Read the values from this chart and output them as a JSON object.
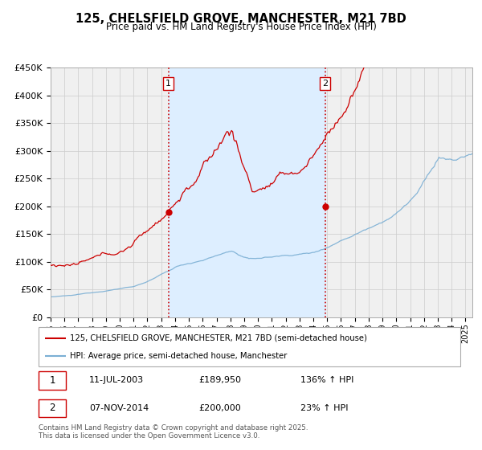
{
  "title": "125, CHELSFIELD GROVE, MANCHESTER, M21 7BD",
  "subtitle": "Price paid vs. HM Land Registry's House Price Index (HPI)",
  "legend_line1": "125, CHELSFIELD GROVE, MANCHESTER, M21 7BD (semi-detached house)",
  "legend_line2": "HPI: Average price, semi-detached house, Manchester",
  "footer": "Contains HM Land Registry data © Crown copyright and database right 2025.\nThis data is licensed under the Open Government Licence v3.0.",
  "table_rows": [
    {
      "num": "1",
      "date": "11-JUL-2003",
      "price": "£189,950",
      "hpi": "136% ↑ HPI"
    },
    {
      "num": "2",
      "date": "07-NOV-2014",
      "price": "£200,000",
      "hpi": "23% ↑ HPI"
    }
  ],
  "vline1_x": 2003.53,
  "vline2_x": 2014.85,
  "point1_x": 2003.53,
  "point1_y": 189950,
  "point2_x": 2014.85,
  "point2_y": 200000,
  "red_color": "#cc0000",
  "blue_color": "#7bafd4",
  "shade_color": "#ddeeff",
  "background_color": "#f0f0f0",
  "grid_color": "#cccccc",
  "ylim": [
    0,
    450000
  ],
  "xlim": [
    1995.0,
    2025.5
  ],
  "yticks": [
    0,
    50000,
    100000,
    150000,
    200000,
    250000,
    300000,
    350000,
    400000,
    450000
  ],
  "ytick_labels": [
    "£0",
    "£50K",
    "£100K",
    "£150K",
    "£200K",
    "£250K",
    "£300K",
    "£350K",
    "£400K",
    "£450K"
  ]
}
